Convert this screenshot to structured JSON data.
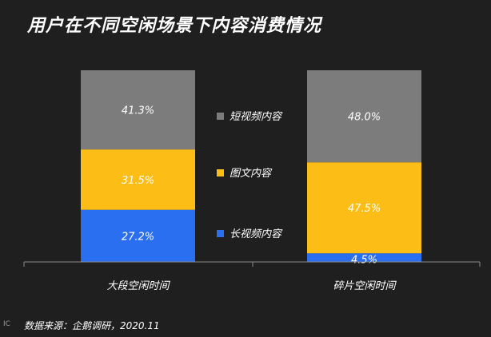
{
  "title": "用户在不同空闲场景下内容消费情况",
  "source": "数据来源：企鹅调研，2020.11",
  "logo_text": "IC",
  "colors": {
    "background": "#1f1f1f",
    "axis": "#8a8a8a"
  },
  "chart_data": {
    "type": "bar",
    "stacked": true,
    "percent": true,
    "categories": [
      "大段空闲时间",
      "碎片空闲时间"
    ],
    "ylim": [
      0,
      100
    ],
    "grid": false,
    "legend_position": "center",
    "series": [
      {
        "name": "长视频内容",
        "color": "#2a6ff0",
        "values": [
          27.2,
          4.5
        ],
        "labels": [
          "27.2%",
          "4.5%"
        ]
      },
      {
        "name": "图文内容",
        "color": "#fbbd16",
        "values": [
          31.5,
          47.5
        ],
        "labels": [
          "31.5%",
          "47.5%"
        ]
      },
      {
        "name": "短视频内容",
        "color": "#7c7c7c",
        "values": [
          41.3,
          48.0
        ],
        "labels": [
          "41.3%",
          "48.0%"
        ]
      }
    ],
    "legend_order": [
      "短视频内容",
      "图文内容",
      "长视频内容"
    ]
  }
}
